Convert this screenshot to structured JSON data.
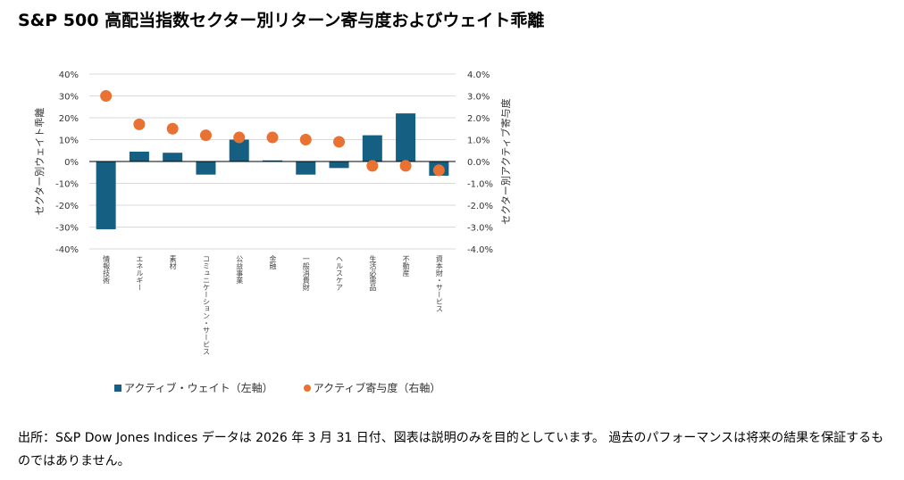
{
  "title": "S&P 500 高配当指数セクター別リターン寄与度およびウェイト乖離",
  "chart_data": {
    "type": "bar+scatter",
    "categories": [
      "情報技術",
      "エネルギー",
      "素材",
      "コミュニケーション・サービス",
      "公益事業",
      "金融",
      "一般消費財",
      "ヘルスケア",
      "生活必需品",
      "不動産",
      "資本財・サービス"
    ],
    "series": [
      {
        "name": "アクティブ・ウェイト（左軸）",
        "type": "bar",
        "axis": "left",
        "color": "#155f82",
        "values": [
          -31,
          4.5,
          4,
          -6,
          10,
          0.5,
          -6,
          -3,
          12,
          22,
          -6.5
        ]
      },
      {
        "name": "アクティブ寄与度（右軸）",
        "type": "scatter",
        "axis": "right",
        "color": "#e97132",
        "values": [
          3.0,
          1.7,
          1.5,
          1.2,
          1.1,
          1.1,
          1.0,
          0.9,
          -0.2,
          -0.2,
          -0.4
        ]
      }
    ],
    "ylabel_left": "セクター別ウェイト乖離",
    "ylabel_right": "セクター別アクティブ寄与度",
    "ylim_left": [
      -40,
      40
    ],
    "ylim_right": [
      -4,
      4
    ],
    "yticks_left": [
      "40%",
      "30%",
      "20%",
      "10%",
      "0%",
      "-10%",
      "-20%",
      "-30%",
      "-40%"
    ],
    "yticks_right": [
      "4.0%",
      "3.0%",
      "2.0%",
      "1.0%",
      "0.0%",
      "-1.0%",
      "-2.0%",
      "-3.0%",
      "-4.0%"
    ],
    "grid": true,
    "legend": "bottom"
  },
  "footer": "出所：S&P Dow Jones Indices データは 2026 年 3 月 31 日付、図表は説明のみを目的としています。 過去のパフォーマンスは将来の結果を保証するものではありません。"
}
